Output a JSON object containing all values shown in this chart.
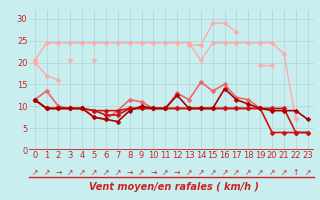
{
  "x": [
    0,
    1,
    2,
    3,
    4,
    5,
    6,
    7,
    8,
    9,
    10,
    11,
    12,
    13,
    14,
    15,
    16,
    17,
    18,
    19,
    20,
    21,
    22,
    23
  ],
  "series": [
    {
      "color": "#ffaaaa",
      "lw": 1.0,
      "marker": "D",
      "ms": 2.5,
      "values": [
        20.5,
        24.5,
        24.5,
        24.5,
        24.5,
        24.5,
        24.5,
        24.5,
        24.5,
        24.5,
        24.5,
        24.5,
        24.5,
        24.5,
        20.5,
        24.5,
        24.5,
        24.5,
        24.5,
        24.5,
        24.5,
        22.0,
        7.0,
        null
      ]
    },
    {
      "color": "#ffaaaa",
      "lw": 1.0,
      "marker": "D",
      "ms": 2.5,
      "values": [
        20.5,
        null,
        null,
        20.5,
        null,
        20.5,
        null,
        null,
        null,
        null,
        null,
        null,
        null,
        24.0,
        24.0,
        29.0,
        29.0,
        27.0,
        null,
        null,
        null,
        null,
        null,
        null
      ]
    },
    {
      "color": "#ffaaaa",
      "lw": 1.0,
      "marker": "D",
      "ms": 2.5,
      "values": [
        null,
        null,
        null,
        null,
        null,
        null,
        null,
        null,
        null,
        null,
        null,
        null,
        null,
        null,
        null,
        null,
        null,
        null,
        null,
        19.5,
        19.5,
        null,
        null,
        null
      ]
    },
    {
      "color": "#ffaaaa",
      "lw": 1.0,
      "marker": "D",
      "ms": 2.5,
      "values": [
        20.0,
        17.0,
        16.0,
        null,
        null,
        null,
        null,
        null,
        null,
        null,
        null,
        null,
        null,
        null,
        null,
        null,
        null,
        null,
        null,
        null,
        null,
        null,
        null,
        null
      ]
    },
    {
      "color": "#ee6666",
      "lw": 1.2,
      "marker": "D",
      "ms": 2.5,
      "values": [
        11.5,
        13.5,
        10.0,
        9.5,
        9.5,
        7.5,
        7.0,
        9.0,
        11.5,
        11.0,
        9.5,
        9.5,
        13.0,
        11.5,
        15.5,
        13.5,
        15.0,
        12.0,
        11.5,
        9.5,
        9.5,
        null,
        null,
        null
      ]
    },
    {
      "color": "#cc1111",
      "lw": 1.2,
      "marker": "D",
      "ms": 2.5,
      "values": [
        11.5,
        9.5,
        9.5,
        9.5,
        9.5,
        9.0,
        9.0,
        9.0,
        9.5,
        9.5,
        9.5,
        9.5,
        9.5,
        9.5,
        9.5,
        9.5,
        9.5,
        9.5,
        9.5,
        9.5,
        9.5,
        9.5,
        4.0,
        4.0
      ]
    },
    {
      "color": "#cc1111",
      "lw": 1.2,
      "marker": "D",
      "ms": 2.5,
      "values": [
        11.5,
        9.5,
        9.5,
        9.5,
        9.5,
        9.0,
        8.0,
        8.0,
        9.5,
        9.5,
        9.5,
        9.5,
        9.5,
        9.5,
        9.5,
        9.5,
        9.5,
        9.5,
        9.5,
        9.5,
        4.0,
        4.0,
        4.0,
        4.0
      ]
    },
    {
      "color": "#aa0000",
      "lw": 1.2,
      "marker": "D",
      "ms": 2.5,
      "values": [
        11.5,
        9.5,
        9.5,
        9.5,
        9.5,
        7.5,
        7.0,
        6.5,
        9.0,
        10.0,
        9.5,
        9.5,
        12.5,
        9.5,
        9.5,
        9.5,
        14.0,
        11.5,
        10.5,
        9.5,
        9.0,
        9.0,
        9.0,
        7.0
      ]
    }
  ],
  "arrows": [
    "↗",
    "↗",
    "→",
    "↗",
    "↗",
    "↗",
    "↗",
    "↗",
    "→",
    "↗",
    "→",
    "↗",
    "→",
    "↗",
    "↗",
    "↗",
    "↗",
    "↗",
    "↗",
    "↗",
    "↗",
    "↗",
    "↑",
    "↗"
  ],
  "arrow_color": "#cc2222",
  "xlabel": "Vent moyen/en rafales ( km/h )",
  "xlabel_fontsize": 7,
  "xlabel_color": "#cc2222",
  "ylabel_ticks": [
    0,
    5,
    10,
    15,
    20,
    25,
    30
  ],
  "xticks": [
    0,
    1,
    2,
    3,
    4,
    5,
    6,
    7,
    8,
    9,
    10,
    11,
    12,
    13,
    14,
    15,
    16,
    17,
    18,
    19,
    20,
    21,
    22,
    23
  ],
  "xlim": [
    -0.5,
    23.5
  ],
  "ylim": [
    0,
    32
  ],
  "bg_color": "#c8eef0",
  "grid_color": "#aacccc",
  "tick_color": "#cc2222",
  "tick_fontsize": 6
}
